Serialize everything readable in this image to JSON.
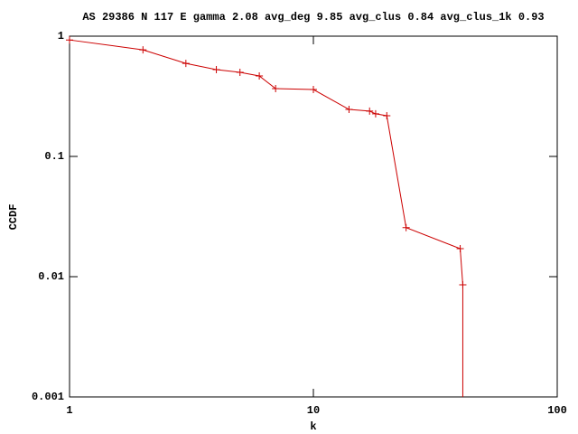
{
  "chart_data": {
    "type": "line",
    "title": "AS 29386 N 117 E gamma 2.08 avg_deg 9.85 avg_clus 0.84 avg_clus_1k 0.93",
    "x_label": "k",
    "y_label": "CCDF",
    "x_log": true,
    "y_log": true,
    "xlim": [
      1,
      100
    ],
    "ylim": [
      0.001,
      1
    ],
    "xticks": [
      1,
      10,
      100
    ],
    "yticks": [
      0.001,
      0.01,
      0.1,
      1
    ],
    "x": [
      1,
      2,
      3,
      4,
      5,
      6,
      7,
      10,
      14,
      17,
      18,
      20,
      24,
      40,
      41,
      41
    ],
    "series": [
      {
        "color": "#cc0000",
        "values": [
          0.93,
          0.77,
          0.594,
          0.527,
          0.5,
          0.467,
          0.366,
          0.36,
          0.246,
          0.238,
          0.226,
          0.218,
          0.0256,
          0.0171,
          0.00855,
          0
        ]
      }
    ]
  }
}
